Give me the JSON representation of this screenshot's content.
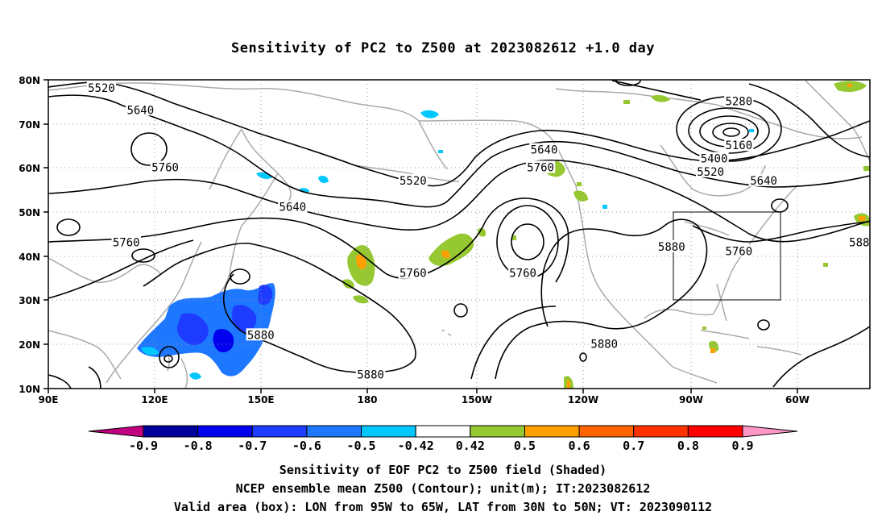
{
  "title": "Sensitivity of PC2 to Z500 at 2023082612 +1.0 day",
  "map": {
    "lat_labels": [
      "80N",
      "70N",
      "60N",
      "50N",
      "40N",
      "30N",
      "20N",
      "10N"
    ],
    "lon_labels": [
      "90E",
      "120E",
      "150E",
      "180",
      "150W",
      "120W",
      "90W",
      "60W"
    ],
    "lon_range_deg_east": [
      90,
      322
    ],
    "lat_range": [
      10,
      80
    ],
    "grid": "dotted every 30 deg longitude and 10 deg latitude",
    "contour_labels": [
      {
        "text": "5520",
        "lon": 105,
        "lat": 78
      },
      {
        "text": "5640",
        "lon": 116,
        "lat": 73
      },
      {
        "text": "5760",
        "lon": 123,
        "lat": 60
      },
      {
        "text": "5640",
        "lon": 159,
        "lat": 51
      },
      {
        "text": "5760",
        "lon": 112,
        "lat": 43
      },
      {
        "text": "5880",
        "lon": 150,
        "lat": 22
      },
      {
        "text": "5880",
        "lon": 181,
        "lat": 13
      },
      {
        "text": "5520",
        "lon": 193,
        "lat": 57
      },
      {
        "text": "5760",
        "lon": 193,
        "lat": 36
      },
      {
        "text": "5640",
        "lon": 230,
        "lat": 64
      },
      {
        "text": "5760",
        "lon": 229,
        "lat": 60
      },
      {
        "text": "5760",
        "lon": 224,
        "lat": 36
      },
      {
        "text": "5880",
        "lon": 266,
        "lat": 42
      },
      {
        "text": "5880",
        "lon": 247,
        "lat": 20
      },
      {
        "text": "5280",
        "lon": 285,
        "lat": 75
      },
      {
        "text": "5160",
        "lon": 285,
        "lat": 65
      },
      {
        "text": "5400",
        "lon": 278,
        "lat": 62
      },
      {
        "text": "5520",
        "lon": 277,
        "lat": 59
      },
      {
        "text": "5640",
        "lon": 292,
        "lat": 57
      },
      {
        "text": "5760",
        "lon": 285,
        "lat": 41
      },
      {
        "text": "588",
        "lon": 319,
        "lat": 43
      }
    ],
    "valid_box": {
      "lon_w": 265,
      "lon_e": 295,
      "lat_s": 30,
      "lat_n": 50
    }
  },
  "colorbar": {
    "labels": [
      "-0.9",
      "-0.8",
      "-0.7",
      "-0.6",
      "-0.5",
      "-0.42",
      "0.42",
      "0.5",
      "0.6",
      "0.7",
      "0.8",
      "0.9"
    ],
    "colors": [
      "#c00080",
      "#00009a",
      "#0000ee",
      "#1e3cff",
      "#1e78ff",
      "#00c8ff",
      "#ffffff",
      "#96c832",
      "#ffa000",
      "#ff6400",
      "#ff3200",
      "#ff0000",
      "#ff96c8"
    ]
  },
  "captions": {
    "line1": "Sensitivity of EOF PC2 to Z500 field (Shaded)",
    "line2": "NCEP ensemble mean Z500 (Contour); unit(m); IT:2023082612",
    "line3": "Valid area (box): LON from 95W to 65W, LAT from 30N to 50N; VT: 2023090112"
  }
}
